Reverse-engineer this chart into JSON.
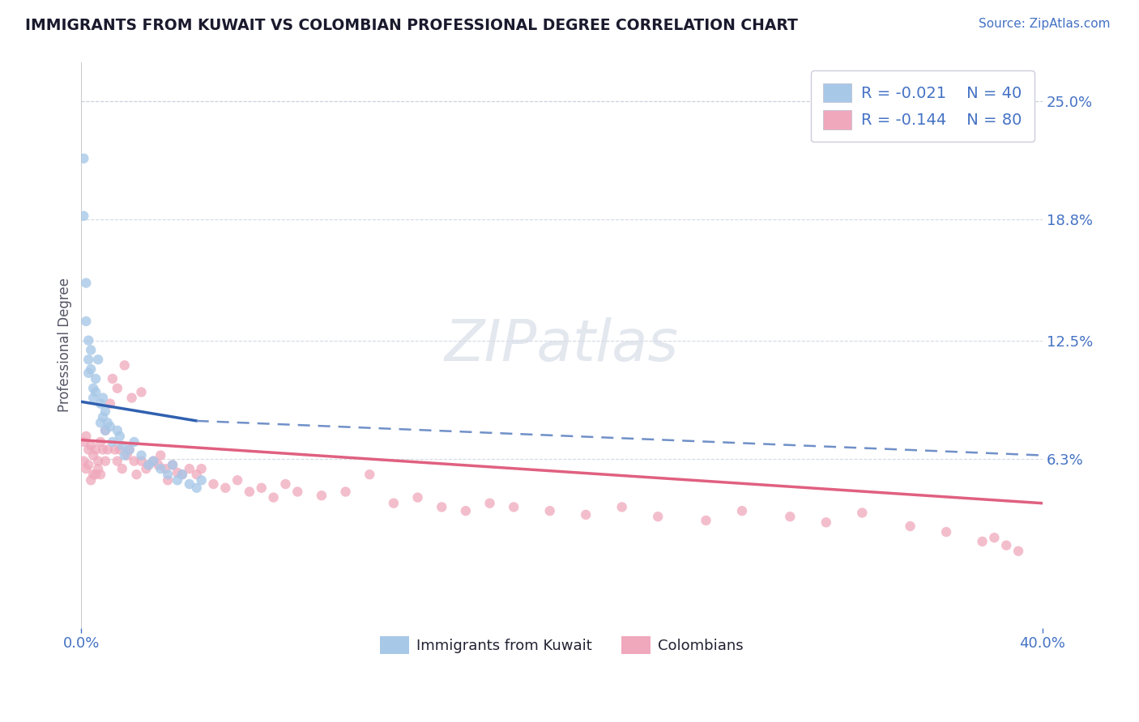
{
  "title": "IMMIGRANTS FROM KUWAIT VS COLOMBIAN PROFESSIONAL DEGREE CORRELATION CHART",
  "source": "Source: ZipAtlas.com",
  "ylabel": "Professional Degree",
  "xlim": [
    0.0,
    0.4
  ],
  "ylim": [
    -0.025,
    0.27
  ],
  "ytick_labels_right": [
    "6.3%",
    "12.5%",
    "18.8%",
    "25.0%"
  ],
  "ytick_values_right": [
    0.063,
    0.125,
    0.188,
    0.25
  ],
  "title_color": "#1a1a2e",
  "source_color": "#4472c4",
  "axis_color": "#4472c4",
  "background_color": "#ffffff",
  "grid_color": "#c8d0dc",
  "legend_r1": "R = -0.021",
  "legend_n1": "N = 40",
  "legend_r2": "R = -0.144",
  "legend_n2": "N = 80",
  "kuwait_color": "#a8c8e8",
  "colombia_color": "#f0a8bc",
  "kuwait_line_color": "#3060b0",
  "colombia_line_color": "#e06080",
  "dashed_line_color": "#7090c8",
  "kuwait_scatter_x": [
    0.001,
    0.001,
    0.002,
    0.002,
    0.003,
    0.003,
    0.003,
    0.004,
    0.004,
    0.005,
    0.005,
    0.006,
    0.006,
    0.007,
    0.008,
    0.008,
    0.009,
    0.009,
    0.01,
    0.01,
    0.011,
    0.012,
    0.013,
    0.015,
    0.016,
    0.017,
    0.018,
    0.02,
    0.022,
    0.025,
    0.028,
    0.03,
    0.033,
    0.036,
    0.038,
    0.04,
    0.042,
    0.045,
    0.048,
    0.05
  ],
  "kuwait_scatter_y": [
    0.22,
    0.19,
    0.155,
    0.135,
    0.125,
    0.115,
    0.108,
    0.12,
    0.11,
    0.1,
    0.095,
    0.105,
    0.098,
    0.115,
    0.092,
    0.082,
    0.095,
    0.085,
    0.088,
    0.078,
    0.082,
    0.08,
    0.072,
    0.078,
    0.075,
    0.07,
    0.065,
    0.068,
    0.072,
    0.065,
    0.06,
    0.062,
    0.058,
    0.055,
    0.06,
    0.052,
    0.055,
    0.05,
    0.048,
    0.052
  ],
  "colombia_scatter_x": [
    0.001,
    0.001,
    0.002,
    0.002,
    0.003,
    0.003,
    0.004,
    0.004,
    0.005,
    0.005,
    0.006,
    0.006,
    0.007,
    0.007,
    0.008,
    0.008,
    0.009,
    0.01,
    0.01,
    0.011,
    0.012,
    0.013,
    0.014,
    0.015,
    0.015,
    0.016,
    0.017,
    0.018,
    0.019,
    0.02,
    0.021,
    0.022,
    0.023,
    0.025,
    0.025,
    0.027,
    0.028,
    0.03,
    0.032,
    0.033,
    0.035,
    0.036,
    0.038,
    0.04,
    0.042,
    0.045,
    0.048,
    0.05,
    0.055,
    0.06,
    0.065,
    0.07,
    0.075,
    0.08,
    0.085,
    0.09,
    0.1,
    0.11,
    0.12,
    0.13,
    0.14,
    0.15,
    0.16,
    0.17,
    0.18,
    0.195,
    0.21,
    0.225,
    0.24,
    0.26,
    0.275,
    0.295,
    0.31,
    0.325,
    0.345,
    0.36,
    0.375,
    0.38,
    0.385,
    0.39
  ],
  "colombia_scatter_y": [
    0.072,
    0.062,
    0.075,
    0.058,
    0.068,
    0.06,
    0.07,
    0.052,
    0.065,
    0.055,
    0.068,
    0.055,
    0.062,
    0.058,
    0.072,
    0.055,
    0.068,
    0.078,
    0.062,
    0.068,
    0.092,
    0.105,
    0.068,
    0.1,
    0.062,
    0.068,
    0.058,
    0.112,
    0.065,
    0.068,
    0.095,
    0.062,
    0.055,
    0.098,
    0.062,
    0.058,
    0.06,
    0.062,
    0.06,
    0.065,
    0.058,
    0.052,
    0.06,
    0.056,
    0.055,
    0.058,
    0.055,
    0.058,
    0.05,
    0.048,
    0.052,
    0.046,
    0.048,
    0.043,
    0.05,
    0.046,
    0.044,
    0.046,
    0.055,
    0.04,
    0.043,
    0.038,
    0.036,
    0.04,
    0.038,
    0.036,
    0.034,
    0.038,
    0.033,
    0.031,
    0.036,
    0.033,
    0.03,
    0.035,
    0.028,
    0.025,
    0.02,
    0.022,
    0.018,
    0.015
  ],
  "kuwait_trend_x": [
    0.0,
    0.048
  ],
  "kuwait_trend_y": [
    0.093,
    0.083
  ],
  "dashed_line_x": [
    0.048,
    0.4
  ],
  "dashed_line_y": [
    0.083,
    0.065
  ],
  "colombia_trend_x": [
    0.0,
    0.4
  ],
  "colombia_trend_y": [
    0.073,
    0.04
  ]
}
